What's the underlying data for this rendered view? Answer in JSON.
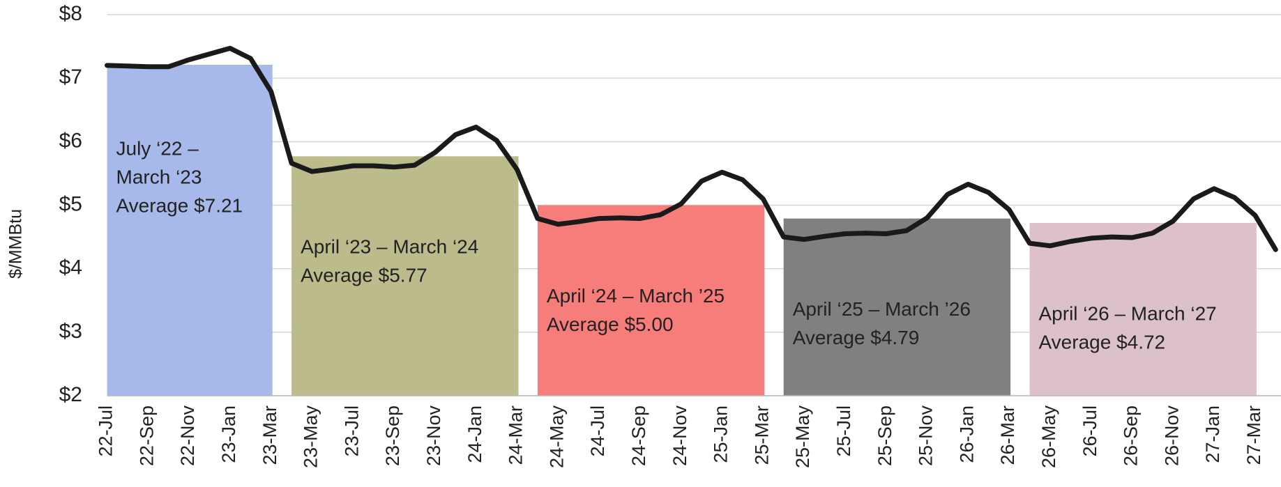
{
  "chart_data": {
    "type": "line",
    "y_label": "$/MMBtu",
    "ylim": [
      2,
      8
    ],
    "yticks": [
      {
        "value": 2,
        "label": "$2"
      },
      {
        "value": 3,
        "label": "$3"
      },
      {
        "value": 4,
        "label": "$4"
      },
      {
        "value": 5,
        "label": "$5"
      },
      {
        "value": 6,
        "label": "$6"
      },
      {
        "value": 7,
        "label": "$7"
      },
      {
        "value": 8,
        "label": "$8"
      }
    ],
    "grid": true,
    "categories": [
      "22-Jul",
      null,
      "22-Sep",
      null,
      "22-Nov",
      null,
      "23-Jan",
      null,
      "23-Mar",
      null,
      "23-May",
      null,
      "23-Jul",
      null,
      "23-Sep",
      null,
      "23-Nov",
      null,
      "24-Jan",
      null,
      "24-Mar",
      null,
      "24-May",
      null,
      "24-Jul",
      null,
      "24-Sep",
      null,
      "24-Nov",
      null,
      "25-Jan",
      null,
      "25-Mar",
      null,
      "25-May",
      null,
      "25-Jul",
      null,
      "25-Sep",
      null,
      "25-Nov",
      null,
      "26-Jan",
      null,
      "26-Mar",
      null,
      "26-May",
      null,
      "26-Jul",
      null,
      "26-Sep",
      null,
      "26-Nov",
      null,
      "27-Jan",
      null,
      "27-Mar",
      null
    ],
    "series": [
      {
        "color": "#1a1a1a",
        "values": [
          7.2,
          7.19,
          7.18,
          7.18,
          7.29,
          7.38,
          7.47,
          7.31,
          6.79,
          5.66,
          5.53,
          5.57,
          5.62,
          5.62,
          5.6,
          5.63,
          5.83,
          6.11,
          6.23,
          6.02,
          5.56,
          4.79,
          4.7,
          4.74,
          4.79,
          4.8,
          4.79,
          4.85,
          5.02,
          5.38,
          5.52,
          5.4,
          5.1,
          4.5,
          4.46,
          4.51,
          4.55,
          4.56,
          4.55,
          4.6,
          4.8,
          5.17,
          5.33,
          5.2,
          4.93,
          4.4,
          4.36,
          4.43,
          4.48,
          4.5,
          4.49,
          4.56,
          4.75,
          5.1,
          5.26,
          5.12,
          4.84,
          4.3
        ]
      }
    ],
    "periods": [
      {
        "lines": [
          "July ‘22 –",
          "March ‘23"
        ],
        "value": 7.21,
        "value_label": "Average $7.21",
        "range": [
          0,
          8
        ],
        "color": "#a7b8ea"
      },
      {
        "lines": [
          "April ‘23 – March ‘24"
        ],
        "value": 5.77,
        "value_label": "Average $5.77",
        "range": [
          9,
          20
        ],
        "color": "#bcbb8c"
      },
      {
        "lines": [
          "April ‘24 – March ’25"
        ],
        "value": 5.0,
        "value_label": "Average $5.00",
        "range": [
          21,
          32
        ],
        "color": "#f77d7b"
      },
      {
        "lines": [
          "April ‘25 – March ’26"
        ],
        "value": 4.79,
        "value_label": "Average $4.79",
        "range": [
          33,
          44
        ],
        "color": "#808080"
      },
      {
        "lines": [
          "April ‘26 – March ‘27"
        ],
        "value": 4.72,
        "value_label": "Average $4.72",
        "range": [
          45,
          56
        ],
        "color": "#dcc1ca"
      }
    ]
  }
}
